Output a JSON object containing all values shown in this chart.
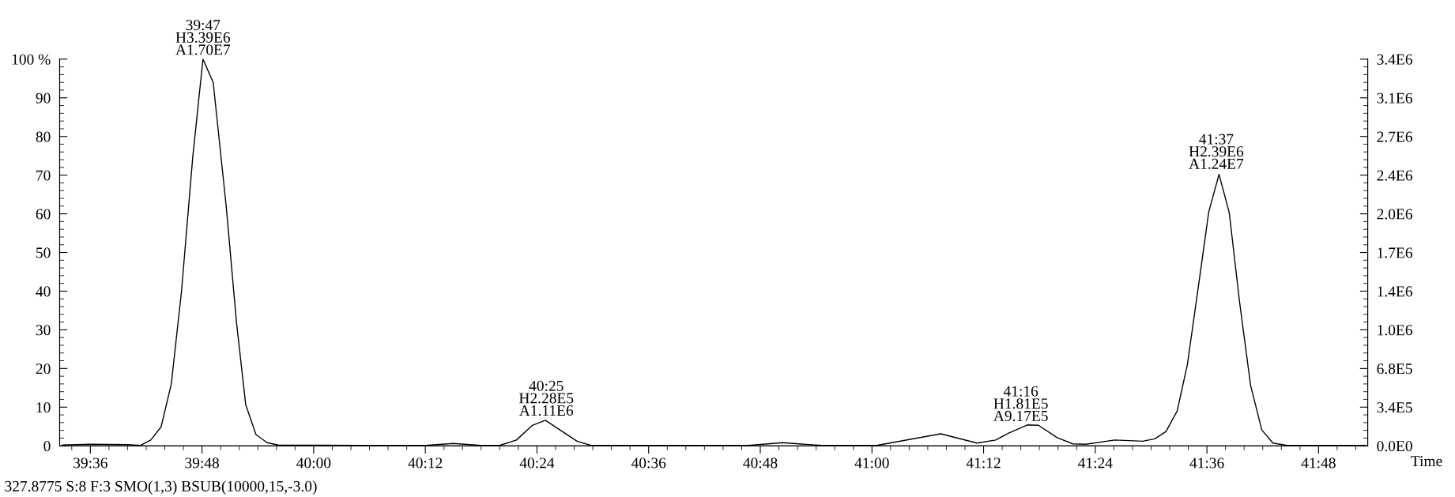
{
  "chart_data": {
    "type": "line",
    "xlabel": "Time",
    "x": [
      39.55,
      39.6,
      39.6667,
      39.69,
      39.7083,
      39.7267,
      39.745,
      39.7633,
      39.7833,
      39.8017,
      39.82,
      39.8433,
      39.8617,
      39.8783,
      39.8967,
      39.9167,
      39.9367,
      40.0833,
      40.2,
      40.25,
      40.3,
      40.3333,
      40.3633,
      40.3917,
      40.415,
      40.4433,
      40.4717,
      40.4967,
      40.6667,
      40.7783,
      40.84,
      40.91,
      41.0083,
      41.1233,
      41.1883,
      41.2217,
      41.245,
      41.2783,
      41.2983,
      41.3317,
      41.36,
      41.3833,
      41.435,
      41.485,
      41.5067,
      41.5267,
      41.5467,
      41.565,
      41.585,
      41.6033,
      41.6217,
      41.64,
      41.6583,
      41.6783,
      41.6983,
      41.7183,
      41.7433,
      41.8833
    ],
    "series": [
      {
        "color": "#000000",
        "values": [
          0.2,
          0.4,
          0.3,
          0.1,
          1.5,
          4.9,
          16,
          40,
          74.5,
          100,
          94,
          62,
          32,
          10.6,
          2.9,
          0.8,
          0.2,
          0.1,
          0.1,
          0.6,
          0.1,
          0.1,
          1.5,
          5.3,
          6.6,
          3.9,
          1.2,
          0.1,
          0.1,
          0.1,
          0.8,
          0.1,
          0.1,
          3.1,
          0.7,
          1.5,
          3.3,
          5.4,
          5.3,
          2.1,
          0.5,
          0.4,
          1.5,
          1.2,
          1.8,
          3.7,
          9,
          21,
          41.5,
          60.5,
          70.2,
          60.3,
          37.4,
          15.6,
          4.1,
          0.7,
          0.1,
          0.1
        ]
      }
    ],
    "xlim": [
      39.545,
      41.888
    ],
    "xticks": [
      {
        "value": 39.6,
        "label": "39:36"
      },
      {
        "value": 39.8,
        "label": "39:48"
      },
      {
        "value": 40.0,
        "label": "40:00"
      },
      {
        "value": 40.2,
        "label": "40:12"
      },
      {
        "value": 40.4,
        "label": "40:24"
      },
      {
        "value": 40.6,
        "label": "40:36"
      },
      {
        "value": 40.8,
        "label": "40:48"
      },
      {
        "value": 41.0,
        "label": "41:00"
      },
      {
        "value": 41.2,
        "label": "41:12"
      },
      {
        "value": 41.4,
        "label": "41:24"
      },
      {
        "value": 41.6,
        "label": "41:36"
      },
      {
        "value": 41.8,
        "label": "41:48"
      }
    ],
    "ylim": [
      0,
      100
    ],
    "yticks": [
      0,
      10,
      20,
      30,
      40,
      50,
      60,
      70,
      80,
      90,
      {
        "value": 100,
        "label": "100 %"
      }
    ],
    "y2lim": [
      0,
      3390000
    ],
    "y2ticks": [
      {
        "value": 0,
        "label": "0.0E0"
      },
      {
        "value": 339000,
        "label": "3.4E5"
      },
      {
        "value": 678000,
        "label": "6.8E5"
      },
      {
        "value": 1017000,
        "label": "1.0E6"
      },
      {
        "value": 1356000,
        "label": "1.4E6"
      },
      {
        "value": 1695000,
        "label": "1.7E6"
      },
      {
        "value": 2034000,
        "label": "2.0E6"
      },
      {
        "value": 2373000,
        "label": "2.4E6"
      },
      {
        "value": 2712000,
        "label": "2.7E6"
      },
      {
        "value": 3051000,
        "label": "3.1E6"
      },
      {
        "value": 3390000,
        "label": "3.4E6"
      }
    ],
    "annotations": [
      {
        "text": "39:47\nH3.39E6\nA1.70E7",
        "x": 39.8017,
        "y": 100
      },
      {
        "text": "40:25\nH2.28E5\nA1.11E6",
        "x": 40.4167,
        "y": 6.7
      },
      {
        "text": "41:16\nH1.81E5\nA9.17E5",
        "x": 41.2667,
        "y": 5.3
      },
      {
        "text": "41:37\nH2.39E6\nA1.24E7",
        "x": 41.6167,
        "y": 70.5
      },
      "327.8775 S:8 F:3 SMO(1,3) BSUB(10000,15,-3.0)"
    ],
    "marker": "none",
    "line_style": "solid"
  }
}
